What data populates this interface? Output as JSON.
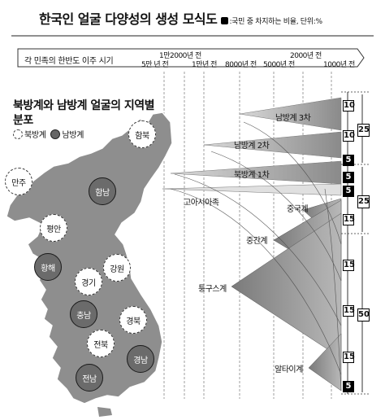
{
  "title": "한국인 얼굴 다양성의 생성 모식도",
  "title_note": ":국민 중 차지하는 비율, 단위:%",
  "timeline": {
    "label": "각 민족의 한반도 이주 시기",
    "ticks_top": [
      "1만2000년 전",
      "2000년 전"
    ],
    "ticks_bottom": [
      "5만 년 전",
      "1만년 전",
      "8000년 전",
      "5000년 전",
      "1000년 전"
    ]
  },
  "map": {
    "heading": "북방계와 남방계 얼굴의 지역별 분포",
    "legend": {
      "north": "북방계",
      "south": "남방계"
    },
    "regions": [
      {
        "name": "함북",
        "type": "north"
      },
      {
        "name": "만주",
        "type": "north"
      },
      {
        "name": "함남",
        "type": "south"
      },
      {
        "name": "평안",
        "type": "north"
      },
      {
        "name": "황해",
        "type": "south"
      },
      {
        "name": "강원",
        "type": "north"
      },
      {
        "name": "경기",
        "type": "north"
      },
      {
        "name": "충남",
        "type": "south"
      },
      {
        "name": "경북",
        "type": "north"
      },
      {
        "name": "전북",
        "type": "north"
      },
      {
        "name": "경남",
        "type": "south"
      },
      {
        "name": "전남",
        "type": "south"
      }
    ]
  },
  "groups": {
    "north3": "남방계 3차",
    "north2": "남방계 2차",
    "north1": "북방계 1차",
    "asian": "고아시아족",
    "china": "중국계",
    "central": "중간계",
    "tungus": "퉁구스계",
    "altai": "알타이계"
  },
  "shares": [
    {
      "value": "10",
      "dark": false
    },
    {
      "value": "10",
      "dark": false
    },
    {
      "value": "5",
      "dark": true
    },
    {
      "value": "5",
      "dark": true
    },
    {
      "value": "5",
      "dark": true
    },
    {
      "value": "15",
      "dark": false
    },
    {
      "value": "15",
      "dark": false
    },
    {
      "value": "15",
      "dark": false
    },
    {
      "value": "15",
      "dark": false
    },
    {
      "value": "5",
      "dark": true
    }
  ],
  "totals": [
    "25",
    "25",
    "50"
  ],
  "colors": {
    "gray_fill": "#9a9a9a",
    "dark_fill": "#555555",
    "map_fill": "#8e8e8e"
  }
}
